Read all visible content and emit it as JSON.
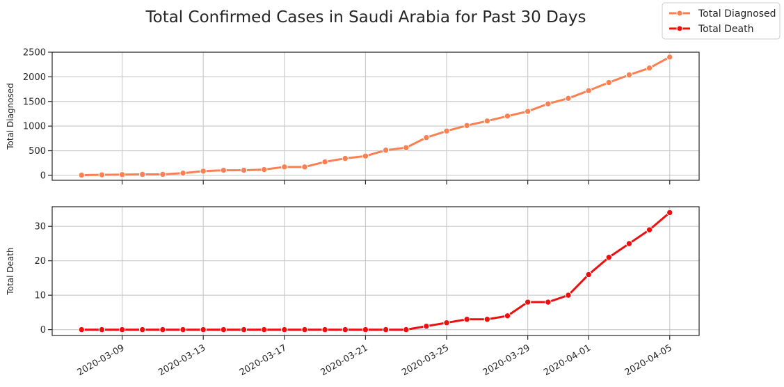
{
  "figure": {
    "title": "Total Confirmed Cases in Saudi Arabia for Past 30 Days"
  },
  "legend": {
    "placement": "top-right",
    "items": [
      {
        "label": "Total Diagnosed",
        "color": "#fb8051"
      },
      {
        "label": "Total Death",
        "color": "#ef0e0e"
      }
    ]
  },
  "chart_data": [
    {
      "type": "line",
      "name": "Total Diagnosed",
      "color": "#fb8051",
      "ylabel": "Total Diagnosed",
      "xlabel": "",
      "x": [
        "2020-03-07",
        "2020-03-08",
        "2020-03-09",
        "2020-03-10",
        "2020-03-11",
        "2020-03-12",
        "2020-03-13",
        "2020-03-14",
        "2020-03-15",
        "2020-03-16",
        "2020-03-17",
        "2020-03-18",
        "2020-03-19",
        "2020-03-20",
        "2020-03-21",
        "2020-03-22",
        "2020-03-23",
        "2020-03-24",
        "2020-03-25",
        "2020-03-26",
        "2020-03-27",
        "2020-03-28",
        "2020-03-29",
        "2020-03-30",
        "2020-03-31",
        "2020-04-01",
        "2020-04-02",
        "2020-04-03",
        "2020-04-04",
        "2020-04-05"
      ],
      "values": [
        5,
        11,
        15,
        20,
        21,
        45,
        86,
        103,
        103,
        118,
        171,
        171,
        274,
        344,
        392,
        511,
        562,
        767,
        900,
        1012,
        1104,
        1203,
        1299,
        1453,
        1563,
        1720,
        1885,
        2039,
        2179,
        2402
      ],
      "ylim": [
        -100,
        2500
      ],
      "yticks": [
        "0",
        "500",
        "1000",
        "1500",
        "2000",
        "2500"
      ],
      "xticks_shown": false,
      "grid": true
    },
    {
      "type": "line",
      "name": "Total Death",
      "color": "#ef0e0e",
      "ylabel": "Total Death",
      "xlabel": "",
      "x": [
        "2020-03-07",
        "2020-03-08",
        "2020-03-09",
        "2020-03-10",
        "2020-03-11",
        "2020-03-12",
        "2020-03-13",
        "2020-03-14",
        "2020-03-15",
        "2020-03-16",
        "2020-03-17",
        "2020-03-18",
        "2020-03-19",
        "2020-03-20",
        "2020-03-21",
        "2020-03-22",
        "2020-03-23",
        "2020-03-24",
        "2020-03-25",
        "2020-03-26",
        "2020-03-27",
        "2020-03-28",
        "2020-03-29",
        "2020-03-30",
        "2020-03-31",
        "2020-04-01",
        "2020-04-02",
        "2020-04-03",
        "2020-04-04",
        "2020-04-05"
      ],
      "values": [
        0,
        0,
        0,
        0,
        0,
        0,
        0,
        0,
        0,
        0,
        0,
        0,
        0,
        0,
        0,
        0,
        0,
        1,
        2,
        3,
        3,
        4,
        8,
        8,
        10,
        16,
        21,
        25,
        29,
        34
      ],
      "ylim": [
        -1.7,
        35.7
      ],
      "yticks": [
        "0",
        "10",
        "20",
        "30"
      ],
      "xticks": [
        "2020-03-09",
        "2020-03-13",
        "2020-03-17",
        "2020-03-21",
        "2020-03-25",
        "2020-03-29",
        "2020-04-01",
        "2020-04-05"
      ],
      "grid": true
    }
  ]
}
